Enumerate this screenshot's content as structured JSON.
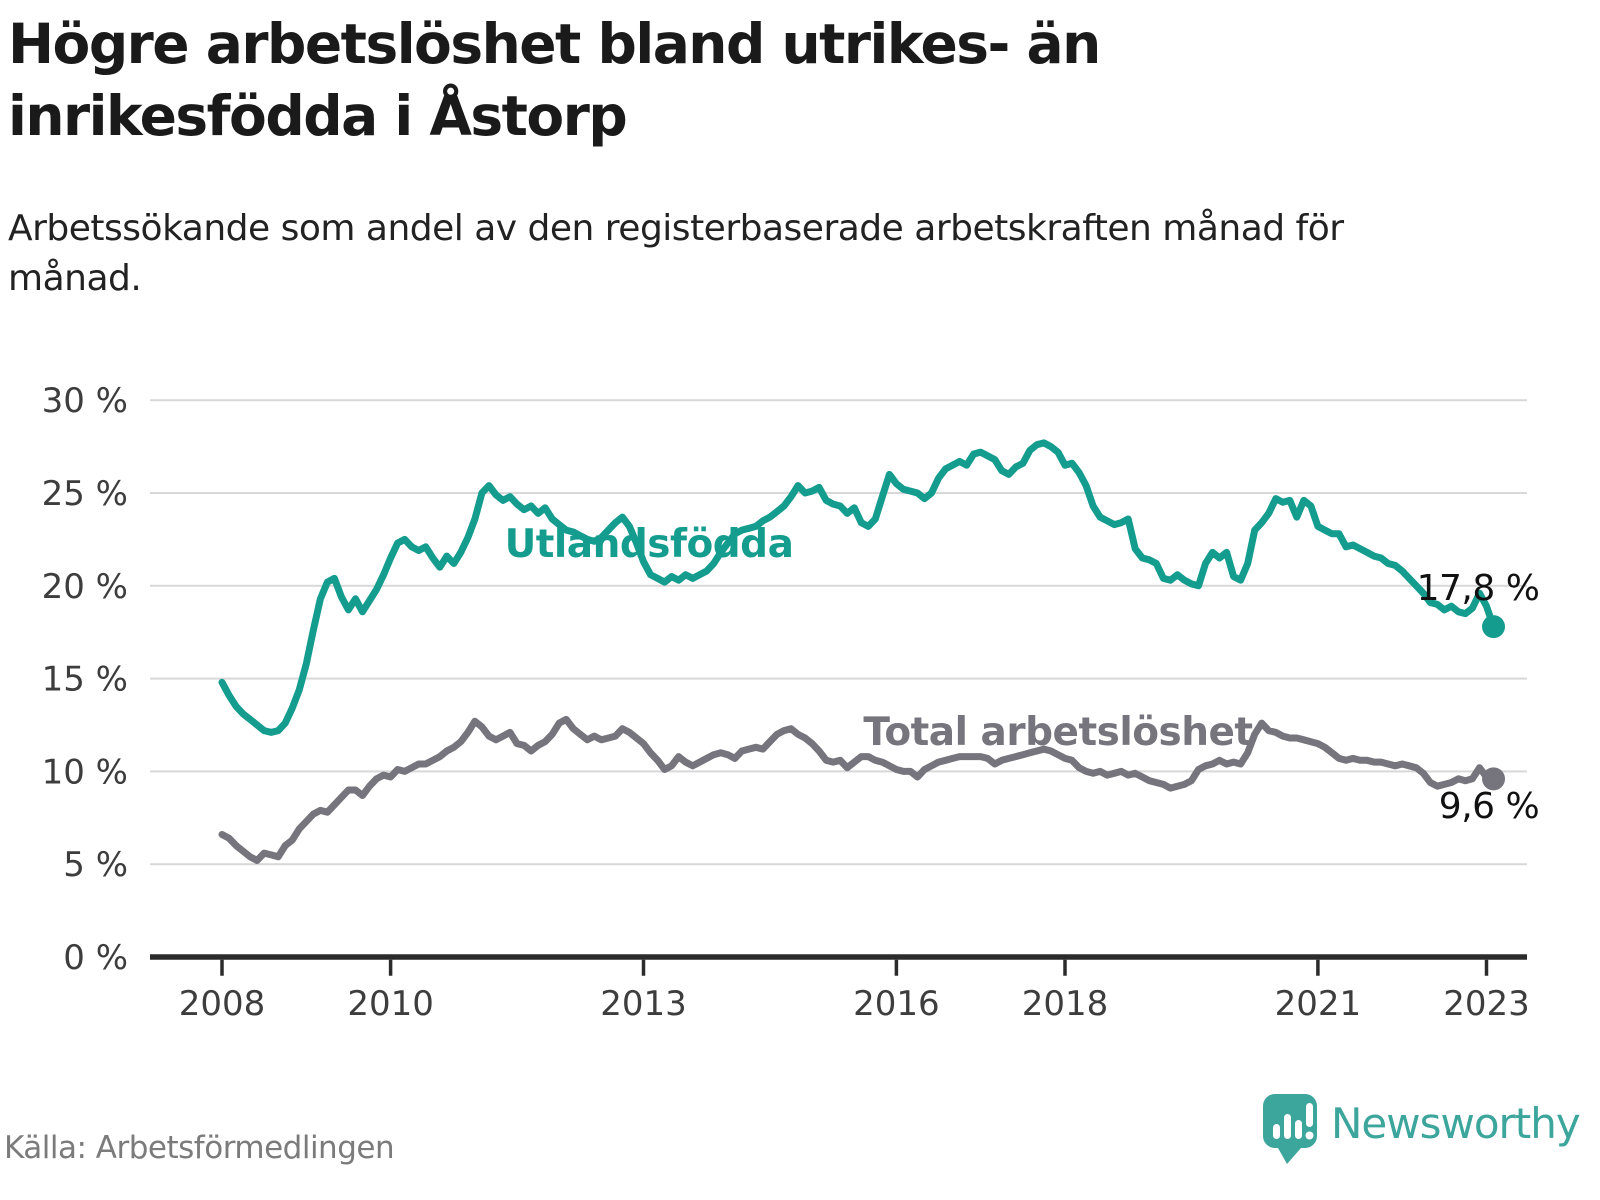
{
  "title": "Högre arbetslöshet bland utrikes- än inrikesfödda i Åstorp",
  "subtitle": "Arbetssökande som andel av den registerbaserade arbetskraften månad för månad.",
  "source": "Källa: Arbetsförmedlingen",
  "branding": {
    "logo_text": "Newsworthy",
    "logo_icon": "newsworthy-bar-chart-pin-icon",
    "logo_color": "#3ca59c"
  },
  "colors": {
    "foreign_born_line": "#149c8e",
    "total_line": "#76757e",
    "grid": "#d8d8d8",
    "axis": "#2b2b2b",
    "axis_text": "#3d3d3d"
  },
  "chart_data": {
    "type": "line",
    "title": "Högre arbetslöshet bland utrikes- än inrikesfödda i Åstorp",
    "subtitle": "Arbetssökande som andel av den registerbaserade arbetskraften månad för månad.",
    "xlabel": "",
    "ylabel": "",
    "ylim": [
      0,
      30
    ],
    "grid": "horizontal",
    "legend_position": "inline-labels",
    "x_start_year": 2008,
    "x_step_months": 1,
    "x_end": "2023-02",
    "x_ticks": [
      {
        "year": 2008,
        "label": "2008"
      },
      {
        "year": 2010,
        "label": "2010"
      },
      {
        "year": 2013,
        "label": "2013"
      },
      {
        "year": 2016,
        "label": "2016"
      },
      {
        "year": 2018,
        "label": "2018"
      },
      {
        "year": 2021,
        "label": "2021"
      },
      {
        "year": 2023,
        "label": "2023"
      }
    ],
    "y_ticks": [
      {
        "value": 0,
        "label": "0 %"
      },
      {
        "value": 5,
        "label": "5 %"
      },
      {
        "value": 10,
        "label": "10 %"
      },
      {
        "value": 15,
        "label": "15 %"
      },
      {
        "value": 20,
        "label": "20 %"
      },
      {
        "value": 25,
        "label": "25 %"
      },
      {
        "value": 30,
        "label": "30 %"
      }
    ],
    "series": [
      {
        "name": "Utlandsfödda",
        "color": "#149c8e",
        "end_label": "17,8 %",
        "end_value": 17.8,
        "values": [
          14.8,
          14.1,
          13.5,
          13.1,
          12.8,
          12.5,
          12.2,
          12.1,
          12.2,
          12.6,
          13.4,
          14.4,
          15.8,
          17.6,
          19.3,
          20.2,
          20.4,
          19.4,
          18.7,
          19.3,
          18.6,
          19.2,
          19.8,
          20.6,
          21.5,
          22.3,
          22.5,
          22.1,
          21.9,
          22.1,
          21.5,
          21.0,
          21.6,
          21.2,
          21.8,
          22.6,
          23.6,
          25.0,
          25.4,
          24.9,
          24.6,
          24.8,
          24.4,
          24.1,
          24.3,
          23.9,
          24.2,
          23.6,
          23.3,
          23.0,
          22.9,
          22.7,
          22.5,
          22.4,
          22.6,
          23.0,
          23.4,
          23.7,
          23.2,
          22.3,
          21.3,
          20.6,
          20.4,
          20.2,
          20.5,
          20.3,
          20.6,
          20.4,
          20.6,
          20.8,
          21.2,
          21.8,
          22.3,
          22.8,
          23.0,
          23.1,
          23.2,
          23.5,
          23.7,
          24.0,
          24.3,
          24.8,
          25.4,
          25.0,
          25.1,
          25.3,
          24.6,
          24.4,
          24.3,
          23.9,
          24.2,
          23.4,
          23.2,
          23.6,
          24.8,
          26.0,
          25.5,
          25.2,
          25.1,
          25.0,
          24.7,
          25.0,
          25.8,
          26.3,
          26.5,
          26.7,
          26.5,
          27.1,
          27.2,
          27.0,
          26.8,
          26.2,
          26.0,
          26.4,
          26.6,
          27.3,
          27.6,
          27.7,
          27.5,
          27.2,
          26.5,
          26.6,
          26.1,
          25.4,
          24.3,
          23.7,
          23.5,
          23.3,
          23.4,
          23.6,
          22.0,
          21.5,
          21.4,
          21.2,
          20.4,
          20.3,
          20.6,
          20.3,
          20.1,
          20.0,
          21.2,
          21.8,
          21.5,
          21.8,
          20.5,
          20.3,
          21.2,
          23.0,
          23.4,
          23.9,
          24.7,
          24.5,
          24.6,
          23.7,
          24.6,
          24.3,
          23.2,
          23.0,
          22.8,
          22.8,
          22.1,
          22.2,
          22.0,
          21.8,
          21.6,
          21.5,
          21.2,
          21.1,
          20.8,
          20.4,
          20.0,
          19.6,
          19.1,
          19.0,
          18.7,
          18.9,
          18.6,
          18.5,
          18.8,
          19.6,
          18.9,
          17.8
        ]
      },
      {
        "name": "Total arbetslöshet",
        "color": "#76757e",
        "end_label": "9,6 %",
        "end_value": 9.6,
        "values": [
          6.6,
          6.4,
          6.0,
          5.7,
          5.4,
          5.2,
          5.6,
          5.5,
          5.4,
          6.0,
          6.3,
          6.9,
          7.3,
          7.7,
          7.9,
          7.8,
          8.2,
          8.6,
          9.0,
          9.0,
          8.7,
          9.2,
          9.6,
          9.8,
          9.7,
          10.1,
          10.0,
          10.2,
          10.4,
          10.4,
          10.6,
          10.8,
          11.1,
          11.3,
          11.6,
          12.1,
          12.7,
          12.4,
          11.9,
          11.7,
          11.9,
          12.1,
          11.5,
          11.4,
          11.1,
          11.4,
          11.6,
          12.0,
          12.6,
          12.8,
          12.3,
          12.0,
          11.7,
          11.9,
          11.7,
          11.8,
          11.9,
          12.3,
          12.1,
          11.8,
          11.5,
          11.0,
          10.6,
          10.1,
          10.3,
          10.8,
          10.5,
          10.3,
          10.5,
          10.7,
          10.9,
          11.0,
          10.9,
          10.7,
          11.1,
          11.2,
          11.3,
          11.2,
          11.6,
          12.0,
          12.2,
          12.3,
          12.0,
          11.8,
          11.5,
          11.1,
          10.6,
          10.5,
          10.6,
          10.2,
          10.5,
          10.8,
          10.8,
          10.6,
          10.5,
          10.3,
          10.1,
          10.0,
          10.0,
          9.7,
          10.1,
          10.3,
          10.5,
          10.6,
          10.7,
          10.8,
          10.8,
          10.8,
          10.8,
          10.7,
          10.4,
          10.6,
          10.7,
          10.8,
          10.9,
          11.0,
          11.1,
          11.2,
          11.1,
          10.9,
          10.7,
          10.6,
          10.2,
          10.0,
          9.9,
          10.0,
          9.8,
          9.9,
          10.0,
          9.8,
          9.9,
          9.7,
          9.5,
          9.4,
          9.3,
          9.1,
          9.2,
          9.3,
          9.5,
          10.1,
          10.3,
          10.4,
          10.6,
          10.4,
          10.5,
          10.4,
          11.0,
          12.0,
          12.6,
          12.2,
          12.1,
          11.9,
          11.8,
          11.8,
          11.7,
          11.6,
          11.5,
          11.3,
          11.0,
          10.7,
          10.6,
          10.7,
          10.6,
          10.6,
          10.5,
          10.5,
          10.4,
          10.3,
          10.4,
          10.3,
          10.2,
          9.9,
          9.4,
          9.2,
          9.3,
          9.4,
          9.6,
          9.5,
          9.6,
          10.2,
          9.7,
          9.6
        ]
      }
    ]
  }
}
